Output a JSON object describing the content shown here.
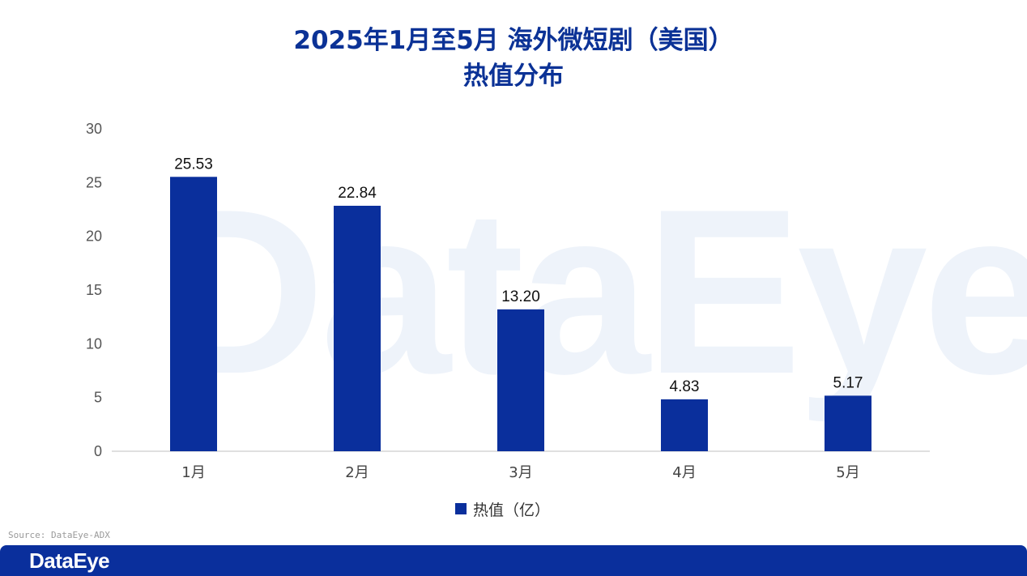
{
  "header": {
    "title_line1": "2025年1月至5月 海外微短剧（美国）",
    "title_line2": "热值分布"
  },
  "watermark": {
    "text": "DataEye"
  },
  "legend": {
    "label": "热值（亿）"
  },
  "source": "Source: DataEye-ADX",
  "footer": {
    "logo": "DataEye"
  },
  "colors": {
    "bar": "#0a2f9c",
    "title": "#0b3296",
    "watermark": "#eef3fa"
  },
  "chart_data": {
    "type": "bar",
    "categories": [
      "1月",
      "2月",
      "3月",
      "4月",
      "5月"
    ],
    "values": [
      25.53,
      22.84,
      13.2,
      4.83,
      5.17
    ],
    "value_labels": [
      "25.53",
      "22.84",
      "13.20",
      "4.83",
      "5.17"
    ],
    "series": [
      {
        "name": "热值（亿）",
        "values": [
          25.53,
          22.84,
          13.2,
          4.83,
          5.17
        ]
      }
    ],
    "yticks": [
      "0",
      "5",
      "10",
      "15",
      "20",
      "25",
      "30"
    ],
    "ylim": [
      0,
      30
    ],
    "grid": false,
    "legend_position": "bottom"
  }
}
